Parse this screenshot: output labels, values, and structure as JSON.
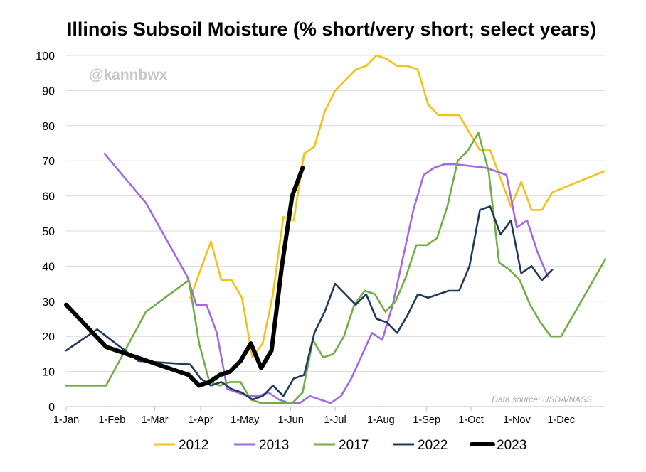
{
  "chart_data": {
    "type": "line",
    "title": "Illinois Subsoil Moisture (% short/very short; select years)",
    "watermark": "@kannbwx",
    "source_note": "Data source: USDA/NASS",
    "xlabel": "",
    "ylabel": "",
    "x_unit": "day of year",
    "xlim": [
      1,
      366
    ],
    "ylim": [
      0,
      100
    ],
    "yticks": [
      0,
      10,
      20,
      30,
      40,
      50,
      60,
      70,
      80,
      90,
      100
    ],
    "xticks": [
      {
        "label": "1-Jan",
        "day": 1
      },
      {
        "label": "1-Feb",
        "day": 32
      },
      {
        "label": "1-Mar",
        "day": 61
      },
      {
        "label": "1-Apr",
        "day": 92
      },
      {
        "label": "1-May",
        "day": 122
      },
      {
        "label": "1-Jun",
        "day": 153
      },
      {
        "label": "1-Jul",
        "day": 183
      },
      {
        "label": "1-Aug",
        "day": 214
      },
      {
        "label": "1-Sep",
        "day": 245
      },
      {
        "label": "1-Oct",
        "day": 275
      },
      {
        "label": "1-Nov",
        "day": 306
      },
      {
        "label": "1-Dec",
        "day": 336
      }
    ],
    "grid": true,
    "legend_position": "bottom",
    "series": [
      {
        "name": "2012",
        "color": "#F2C11A",
        "bold": false,
        "points": [
          [
            85,
            31
          ],
          [
            99,
            47
          ],
          [
            106,
            36
          ],
          [
            113,
            36
          ],
          [
            120,
            31
          ],
          [
            127,
            14
          ],
          [
            134,
            18
          ],
          [
            141,
            32
          ],
          [
            148,
            54
          ],
          [
            155,
            53
          ],
          [
            162,
            72
          ],
          [
            169,
            74
          ],
          [
            176,
            84
          ],
          [
            183,
            90
          ],
          [
            190,
            93
          ],
          [
            197,
            96
          ],
          [
            204,
            97
          ],
          [
            211,
            100
          ],
          [
            218,
            99
          ],
          [
            225,
            97
          ],
          [
            232,
            97
          ],
          [
            239,
            96
          ],
          [
            246,
            86
          ],
          [
            253,
            83
          ],
          [
            260,
            83
          ],
          [
            267,
            83
          ],
          [
            274,
            78
          ],
          [
            281,
            73
          ],
          [
            288,
            73
          ],
          [
            295,
            65
          ],
          [
            302,
            57
          ],
          [
            309,
            64
          ],
          [
            316,
            56
          ],
          [
            323,
            56
          ],
          [
            330,
            61
          ],
          [
            365,
            67
          ]
        ]
      },
      {
        "name": "2013",
        "color": "#A469E0",
        "bold": false,
        "points": [
          [
            27,
            72
          ],
          [
            55,
            58
          ],
          [
            83,
            37
          ],
          [
            89,
            29
          ],
          [
            96,
            29
          ],
          [
            103,
            21
          ],
          [
            110,
            5
          ],
          [
            117,
            4
          ],
          [
            124,
            3
          ],
          [
            131,
            3
          ],
          [
            138,
            4
          ],
          [
            145,
            2
          ],
          [
            152,
            1
          ],
          [
            159,
            1
          ],
          [
            166,
            3
          ],
          [
            180,
            1
          ],
          [
            187,
            3
          ],
          [
            194,
            8
          ],
          [
            208,
            21
          ],
          [
            215,
            19
          ],
          [
            222,
            29
          ],
          [
            236,
            56
          ],
          [
            243,
            66
          ],
          [
            250,
            68
          ],
          [
            257,
            69
          ],
          [
            264,
            69
          ],
          [
            285,
            68
          ],
          [
            299,
            66
          ],
          [
            306,
            51
          ],
          [
            313,
            53
          ],
          [
            320,
            44
          ],
          [
            327,
            37
          ]
        ]
      },
      {
        "name": "2017",
        "color": "#71AE48",
        "bold": false,
        "points": [
          [
            1,
            6
          ],
          [
            28,
            6
          ],
          [
            55,
            27
          ],
          [
            84,
            36
          ],
          [
            91,
            18
          ],
          [
            98,
            7
          ],
          [
            105,
            6
          ],
          [
            112,
            7
          ],
          [
            119,
            7
          ],
          [
            126,
            2
          ],
          [
            133,
            1
          ],
          [
            140,
            1
          ],
          [
            147,
            1
          ],
          [
            154,
            1
          ],
          [
            161,
            4
          ],
          [
            168,
            19
          ],
          [
            175,
            14
          ],
          [
            182,
            15
          ],
          [
            189,
            20
          ],
          [
            196,
            29
          ],
          [
            203,
            33
          ],
          [
            210,
            32
          ],
          [
            217,
            27
          ],
          [
            224,
            30
          ],
          [
            231,
            37
          ],
          [
            238,
            46
          ],
          [
            245,
            46
          ],
          [
            252,
            48
          ],
          [
            259,
            57
          ],
          [
            266,
            70
          ],
          [
            273,
            73
          ],
          [
            280,
            78
          ],
          [
            287,
            67
          ],
          [
            294,
            41
          ],
          [
            301,
            39
          ],
          [
            308,
            36
          ],
          [
            315,
            29
          ],
          [
            322,
            24
          ],
          [
            329,
            20
          ],
          [
            336,
            20
          ],
          [
            366,
            42
          ]
        ]
      },
      {
        "name": "2022",
        "color": "#203A5C",
        "bold": false,
        "points": [
          [
            1,
            16
          ],
          [
            22,
            22
          ],
          [
            50,
            13
          ],
          [
            85,
            12
          ],
          [
            92,
            8
          ],
          [
            99,
            6
          ],
          [
            106,
            7
          ],
          [
            113,
            5
          ],
          [
            120,
            4
          ],
          [
            127,
            2
          ],
          [
            134,
            3
          ],
          [
            141,
            6
          ],
          [
            148,
            3
          ],
          [
            155,
            8
          ],
          [
            162,
            9
          ],
          [
            169,
            21
          ],
          [
            176,
            27
          ],
          [
            183,
            35
          ],
          [
            190,
            32
          ],
          [
            197,
            29
          ],
          [
            204,
            32
          ],
          [
            211,
            25
          ],
          [
            218,
            24
          ],
          [
            225,
            21
          ],
          [
            232,
            26
          ],
          [
            239,
            32
          ],
          [
            246,
            31
          ],
          [
            253,
            32
          ],
          [
            260,
            33
          ],
          [
            267,
            33
          ],
          [
            274,
            40
          ],
          [
            281,
            56
          ],
          [
            288,
            57
          ],
          [
            295,
            49
          ],
          [
            302,
            53
          ],
          [
            309,
            38
          ],
          [
            316,
            40
          ],
          [
            323,
            36
          ],
          [
            330,
            39
          ]
        ]
      },
      {
        "name": "2023",
        "color": "#000000",
        "bold": true,
        "points": [
          [
            1,
            29
          ],
          [
            28,
            17
          ],
          [
            56,
            13
          ],
          [
            84,
            9
          ],
          [
            91,
            6
          ],
          [
            98,
            7
          ],
          [
            105,
            9
          ],
          [
            112,
            10
          ],
          [
            119,
            13
          ],
          [
            126,
            18
          ],
          [
            133,
            11
          ],
          [
            140,
            16
          ],
          [
            147,
            40
          ],
          [
            154,
            60
          ],
          [
            161,
            68
          ]
        ]
      }
    ]
  }
}
